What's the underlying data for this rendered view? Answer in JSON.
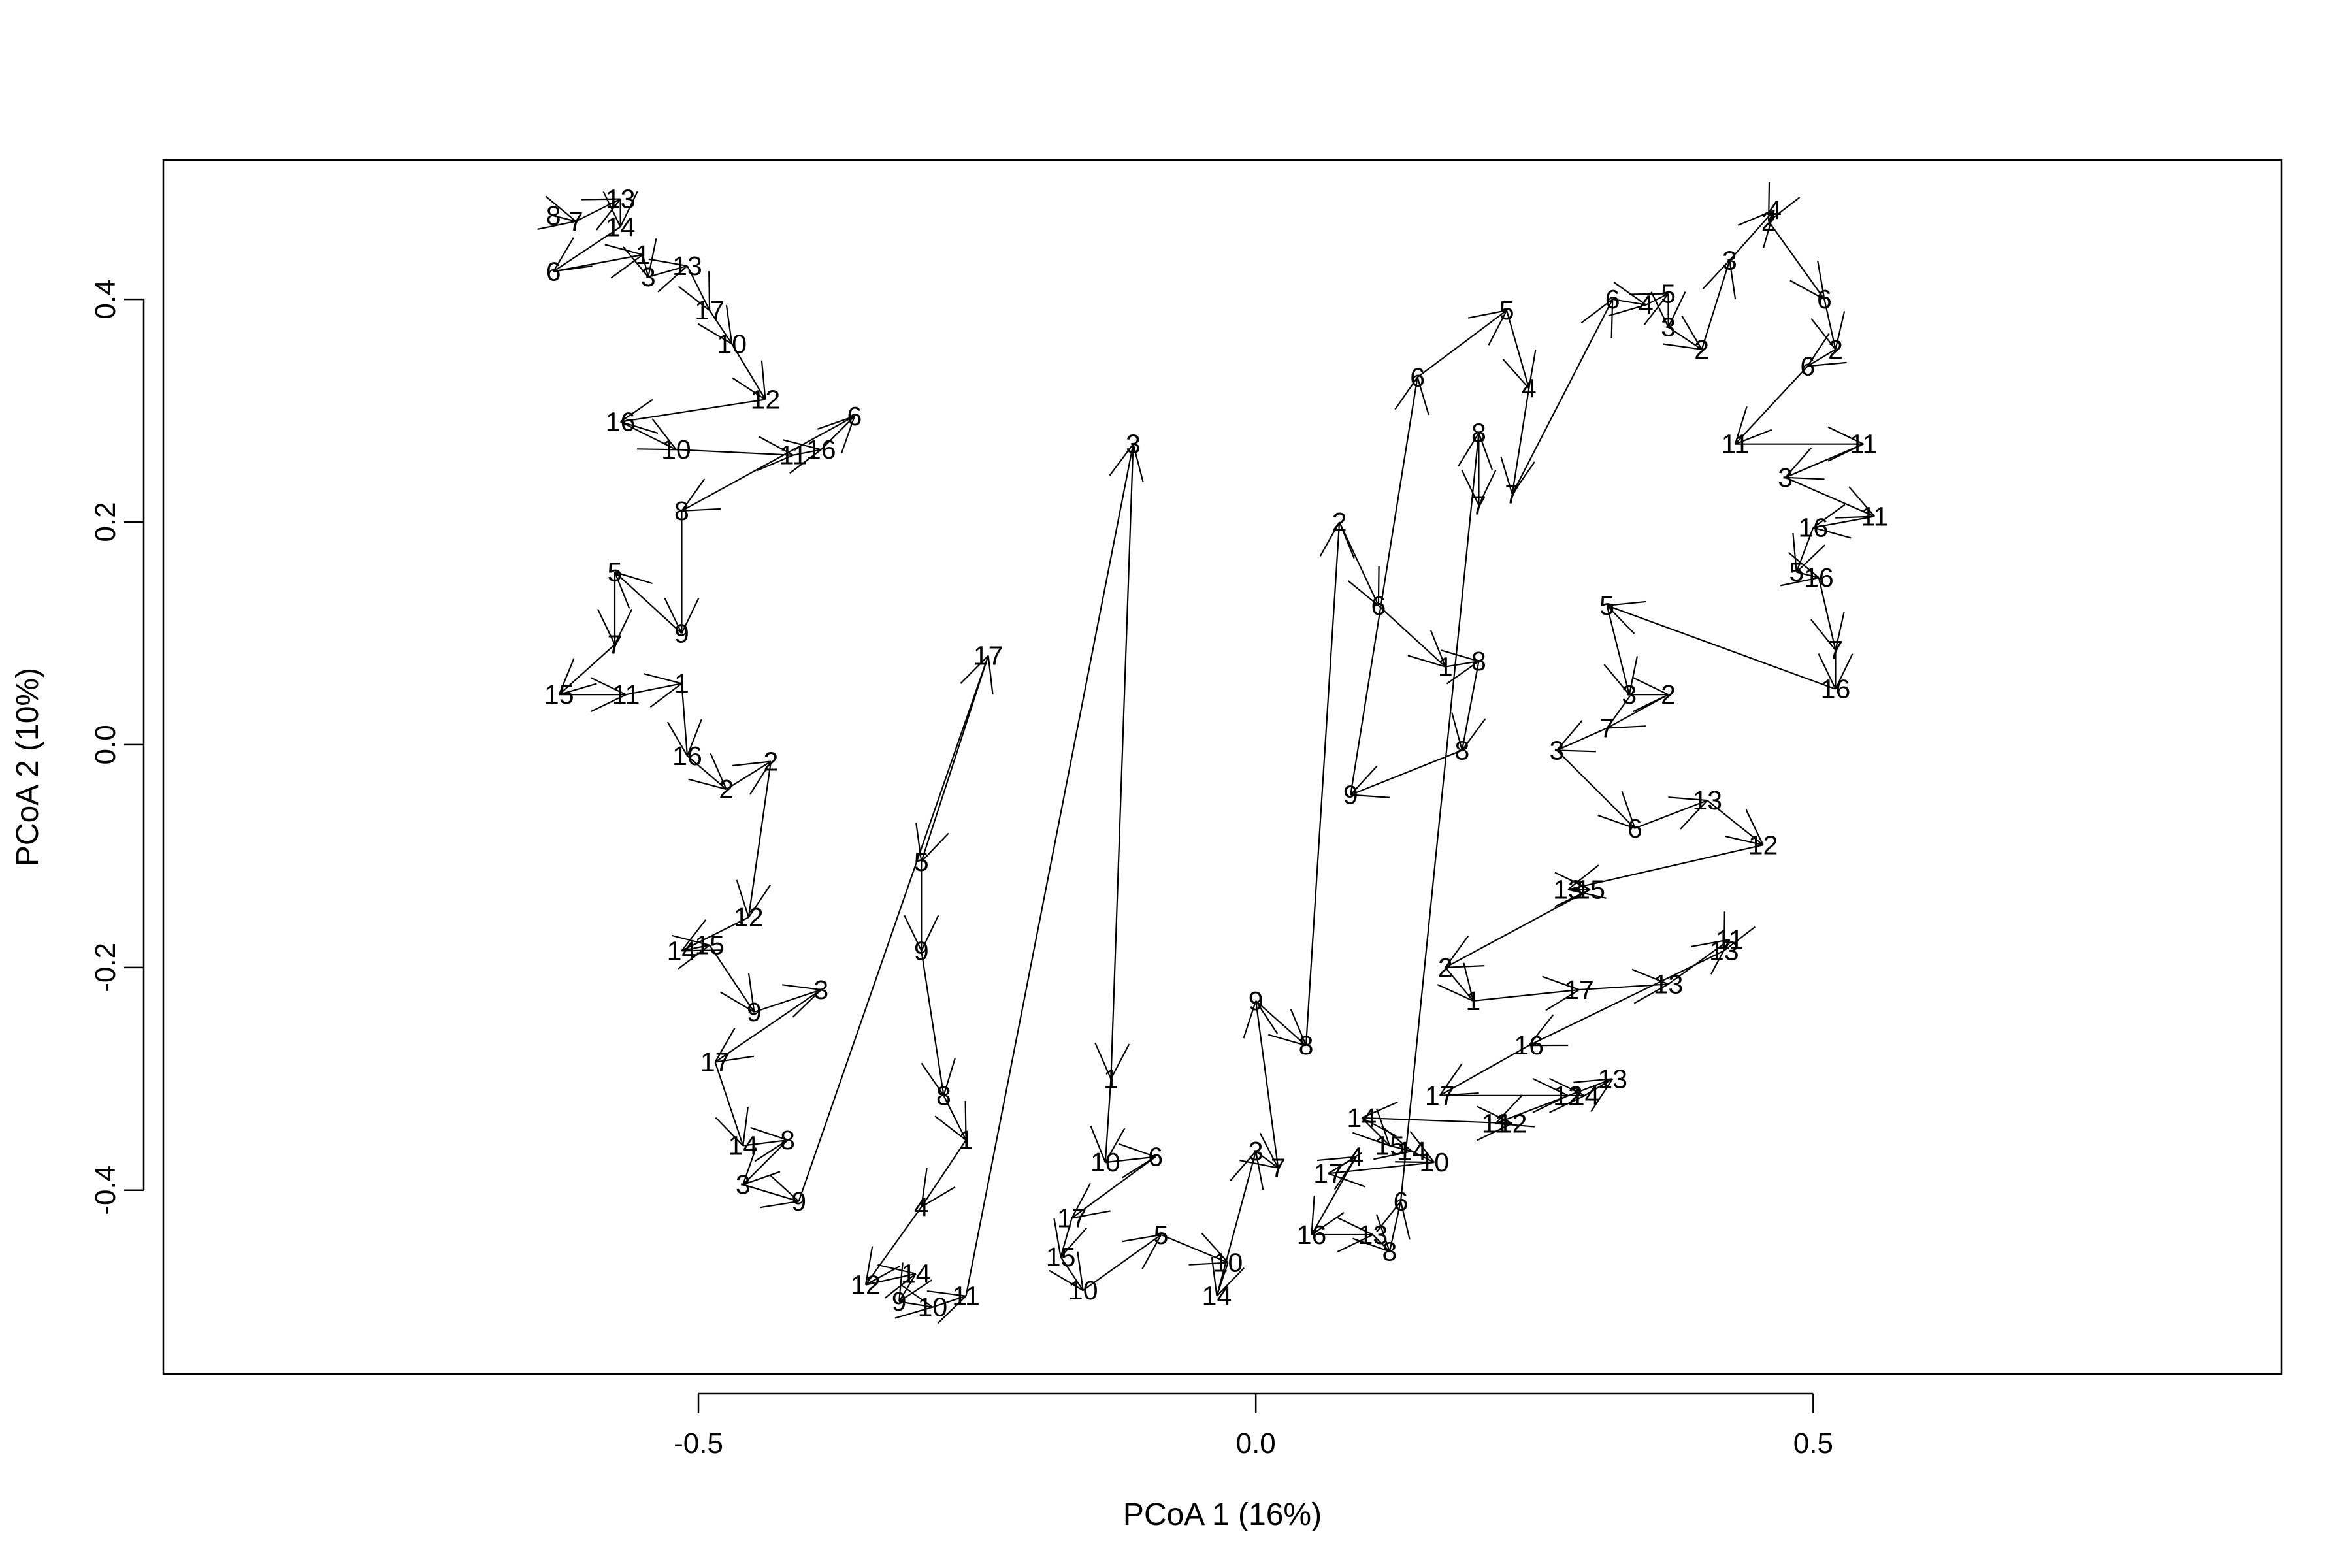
{
  "chart_data": {
    "type": "scatter",
    "title": "",
    "xlabel": "PCoA 1 (16%)",
    "ylabel": "PCoA 2 (10%)",
    "xlim": [
      -0.98,
      0.92
    ],
    "ylim": [
      -0.565,
      0.525
    ],
    "xticks": [
      -0.5,
      0.0,
      0.5
    ],
    "xtick_labels": [
      "-0.5",
      "0.0",
      "0.5"
    ],
    "yticks": [
      -0.4,
      -0.2,
      0.0,
      0.2,
      0.4
    ],
    "ytick_labels": [
      "-0.4",
      "-0.2",
      "0.0",
      "0.2",
      "0.4"
    ],
    "grid": false,
    "legend": "none",
    "style": "labeled trajectories connected by arrows",
    "color": "#000000",
    "series": [
      {
        "points": [
          {
            "label": "8",
            "x": -0.63,
            "y": 0.475
          },
          {
            "label": "7",
            "x": -0.61,
            "y": 0.47
          },
          {
            "label": "13",
            "x": -0.57,
            "y": 0.49
          },
          {
            "label": "14",
            "x": -0.57,
            "y": 0.465
          },
          {
            "label": "6",
            "x": -0.63,
            "y": 0.425
          },
          {
            "label": "1",
            "x": -0.55,
            "y": 0.44
          },
          {
            "label": "3",
            "x": -0.545,
            "y": 0.42
          },
          {
            "label": "13",
            "x": -0.51,
            "y": 0.43
          },
          {
            "label": "17",
            "x": -0.49,
            "y": 0.39
          },
          {
            "label": "10",
            "x": -0.47,
            "y": 0.36
          },
          {
            "label": "12",
            "x": -0.44,
            "y": 0.31
          },
          {
            "label": "16",
            "x": -0.57,
            "y": 0.29
          },
          {
            "label": "10",
            "x": -0.52,
            "y": 0.265
          },
          {
            "label": "11",
            "x": -0.415,
            "y": 0.26
          },
          {
            "label": "16",
            "x": -0.39,
            "y": 0.265
          },
          {
            "label": "6",
            "x": -0.36,
            "y": 0.295
          },
          {
            "label": "8",
            "x": -0.515,
            "y": 0.21
          },
          {
            "label": "9",
            "x": -0.515,
            "y": 0.1
          },
          {
            "label": "5",
            "x": -0.575,
            "y": 0.155
          },
          {
            "label": "7",
            "x": -0.575,
            "y": 0.09
          },
          {
            "label": "15",
            "x": -0.625,
            "y": 0.045
          },
          {
            "label": "11",
            "x": -0.565,
            "y": 0.045
          },
          {
            "label": "1",
            "x": -0.515,
            "y": 0.055
          },
          {
            "label": "16",
            "x": -0.51,
            "y": -0.01
          },
          {
            "label": "2",
            "x": -0.475,
            "y": -0.04
          },
          {
            "label": "2",
            "x": -0.435,
            "y": -0.015
          },
          {
            "label": "12",
            "x": -0.455,
            "y": -0.155
          },
          {
            "label": "14",
            "x": -0.515,
            "y": -0.185
          },
          {
            "label": "15",
            "x": -0.49,
            "y": -0.18
          },
          {
            "label": "9",
            "x": -0.45,
            "y": -0.24
          },
          {
            "label": "3",
            "x": -0.39,
            "y": -0.22
          },
          {
            "label": "17",
            "x": -0.485,
            "y": -0.285
          },
          {
            "label": "14",
            "x": -0.46,
            "y": -0.36
          },
          {
            "label": "8",
            "x": -0.42,
            "y": -0.355
          },
          {
            "label": "3",
            "x": -0.46,
            "y": -0.395
          },
          {
            "label": "9",
            "x": -0.41,
            "y": -0.41
          },
          {
            "label": "17",
            "x": -0.24,
            "y": 0.08
          },
          {
            "label": "5",
            "x": -0.3,
            "y": -0.105
          },
          {
            "label": "9",
            "x": -0.3,
            "y": -0.185
          },
          {
            "label": "8",
            "x": -0.28,
            "y": -0.315
          },
          {
            "label": "1",
            "x": -0.26,
            "y": -0.355
          },
          {
            "label": "4",
            "x": -0.3,
            "y": -0.415
          },
          {
            "label": "12",
            "x": -0.35,
            "y": -0.485
          },
          {
            "label": "14",
            "x": -0.305,
            "y": -0.475
          },
          {
            "label": "9",
            "x": -0.32,
            "y": -0.5
          },
          {
            "label": "10",
            "x": -0.29,
            "y": -0.505
          },
          {
            "label": "11",
            "x": -0.26,
            "y": -0.495
          },
          {
            "label": "3",
            "x": -0.11,
            "y": 0.27
          },
          {
            "label": "1",
            "x": -0.13,
            "y": -0.3
          },
          {
            "label": "10",
            "x": -0.135,
            "y": -0.375
          },
          {
            "label": "6",
            "x": -0.09,
            "y": -0.37
          },
          {
            "label": "17",
            "x": -0.165,
            "y": -0.425
          },
          {
            "label": "15",
            "x": -0.175,
            "y": -0.46
          },
          {
            "label": "10",
            "x": -0.155,
            "y": -0.49
          },
          {
            "label": "5",
            "x": -0.085,
            "y": -0.44
          },
          {
            "label": "10",
            "x": -0.025,
            "y": -0.465
          },
          {
            "label": "14",
            "x": -0.035,
            "y": -0.495
          },
          {
            "label": "3",
            "x": 0.0,
            "y": -0.365
          },
          {
            "label": "7",
            "x": 0.02,
            "y": -0.38
          },
          {
            "label": "9",
            "x": 0.0,
            "y": -0.23
          },
          {
            "label": "8",
            "x": 0.045,
            "y": -0.27
          },
          {
            "label": "2",
            "x": 0.075,
            "y": 0.2
          },
          {
            "label": "6",
            "x": 0.11,
            "y": 0.125
          },
          {
            "label": "1",
            "x": 0.17,
            "y": 0.07
          },
          {
            "label": "8",
            "x": 0.2,
            "y": 0.075
          },
          {
            "label": "8",
            "x": 0.185,
            "y": -0.005
          },
          {
            "label": "9",
            "x": 0.085,
            "y": -0.045
          },
          {
            "label": "6",
            "x": 0.145,
            "y": 0.33
          },
          {
            "label": "5",
            "x": 0.225,
            "y": 0.39
          },
          {
            "label": "4",
            "x": 0.245,
            "y": 0.32
          },
          {
            "label": "7",
            "x": 0.23,
            "y": 0.225
          },
          {
            "label": "6",
            "x": 0.32,
            "y": 0.4
          },
          {
            "label": "4",
            "x": 0.35,
            "y": 0.395
          },
          {
            "label": "5",
            "x": 0.37,
            "y": 0.405
          },
          {
            "label": "3",
            "x": 0.37,
            "y": 0.375
          },
          {
            "label": "2",
            "x": 0.4,
            "y": 0.355
          },
          {
            "label": "3",
            "x": 0.425,
            "y": 0.435
          },
          {
            "label": "4",
            "x": 0.465,
            "y": 0.48
          },
          {
            "label": "2",
            "x": 0.46,
            "y": 0.47
          },
          {
            "label": "6",
            "x": 0.51,
            "y": 0.4
          },
          {
            "label": "2",
            "x": 0.52,
            "y": 0.355
          },
          {
            "label": "6",
            "x": 0.495,
            "y": 0.34
          },
          {
            "label": "11",
            "x": 0.43,
            "y": 0.27
          },
          {
            "label": "11",
            "x": 0.545,
            "y": 0.27
          },
          {
            "label": "3",
            "x": 0.475,
            "y": 0.24
          },
          {
            "label": "11",
            "x": 0.555,
            "y": 0.205
          },
          {
            "label": "16",
            "x": 0.5,
            "y": 0.195
          },
          {
            "label": "5",
            "x": 0.485,
            "y": 0.155
          },
          {
            "label": "16",
            "x": 0.505,
            "y": 0.15
          },
          {
            "label": "7",
            "x": 0.52,
            "y": 0.085
          },
          {
            "label": "16",
            "x": 0.52,
            "y": 0.05
          },
          {
            "label": "5",
            "x": 0.315,
            "y": 0.125
          },
          {
            "label": "3",
            "x": 0.335,
            "y": 0.045
          },
          {
            "label": "2",
            "x": 0.37,
            "y": 0.045
          },
          {
            "label": "7",
            "x": 0.315,
            "y": 0.015
          },
          {
            "label": "3",
            "x": 0.27,
            "y": -0.005
          },
          {
            "label": "6",
            "x": 0.34,
            "y": -0.075
          },
          {
            "label": "13",
            "x": 0.405,
            "y": -0.05
          },
          {
            "label": "12",
            "x": 0.455,
            "y": -0.09
          },
          {
            "label": "13",
            "x": 0.28,
            "y": -0.13
          },
          {
            "label": "15",
            "x": 0.3,
            "y": -0.13
          },
          {
            "label": "2",
            "x": 0.17,
            "y": -0.2
          },
          {
            "label": "1",
            "x": 0.195,
            "y": -0.23
          },
          {
            "label": "17",
            "x": 0.29,
            "y": -0.22
          },
          {
            "label": "13",
            "x": 0.37,
            "y": -0.215
          },
          {
            "label": "11",
            "x": 0.425,
            "y": -0.175
          },
          {
            "label": "13",
            "x": 0.42,
            "y": -0.185
          },
          {
            "label": "16",
            "x": 0.245,
            "y": -0.27
          },
          {
            "label": "17",
            "x": 0.165,
            "y": -0.315
          },
          {
            "label": "12",
            "x": 0.28,
            "y": -0.315
          },
          {
            "label": "14",
            "x": 0.295,
            "y": -0.315
          },
          {
            "label": "13",
            "x": 0.32,
            "y": -0.3
          },
          {
            "label": "11",
            "x": 0.215,
            "y": -0.34
          },
          {
            "label": "12",
            "x": 0.23,
            "y": -0.34
          },
          {
            "label": "14",
            "x": 0.095,
            "y": -0.335
          },
          {
            "label": "15",
            "x": 0.12,
            "y": -0.36
          },
          {
            "label": "14",
            "x": 0.14,
            "y": -0.365
          },
          {
            "label": "10",
            "x": 0.16,
            "y": -0.375
          },
          {
            "label": "17",
            "x": 0.065,
            "y": -0.385
          },
          {
            "label": "4",
            "x": 0.09,
            "y": -0.37
          },
          {
            "label": "16",
            "x": 0.05,
            "y": -0.44
          },
          {
            "label": "13",
            "x": 0.105,
            "y": -0.44
          },
          {
            "label": "8",
            "x": 0.12,
            "y": -0.455
          },
          {
            "label": "6",
            "x": 0.13,
            "y": -0.41
          },
          {
            "label": "8",
            "x": 0.2,
            "y": 0.28
          },
          {
            "label": "7",
            "x": 0.2,
            "y": 0.215
          }
        ]
      }
    ]
  }
}
